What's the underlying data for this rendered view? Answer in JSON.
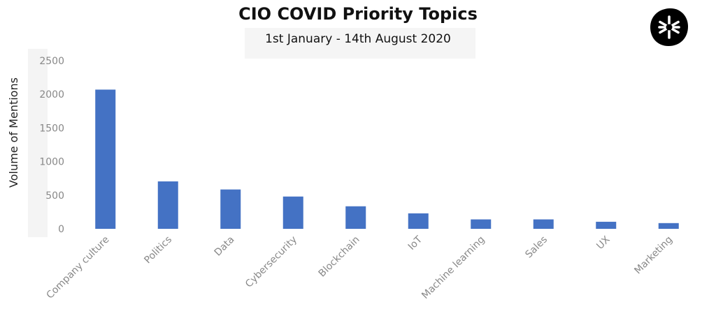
{
  "chart_data": {
    "type": "bar",
    "title": "CIO COVID Priority Topics",
    "subtitle": "1st January - 14th August 2020",
    "ylabel": "Volume of Mentions",
    "xlabel": "",
    "ylim": [
      0,
      2500
    ],
    "yticks": [
      0,
      500,
      1000,
      1500,
      2000,
      2500
    ],
    "grid": false,
    "legend": "none",
    "bar_color": "#4472C4",
    "categories": [
      "Company culture",
      "Politics",
      "Data",
      "Cybersecurity",
      "Blockchain",
      "IoT",
      "Machine learning",
      "Sales",
      "UX",
      "Marketing"
    ],
    "series": [
      {
        "values": [
          2070,
          705,
          585,
          480,
          335,
          230,
          140,
          140,
          105,
          85
        ]
      }
    ]
  },
  "logo": {
    "icon": "asterisk-badge-icon",
    "color": "#000000"
  }
}
